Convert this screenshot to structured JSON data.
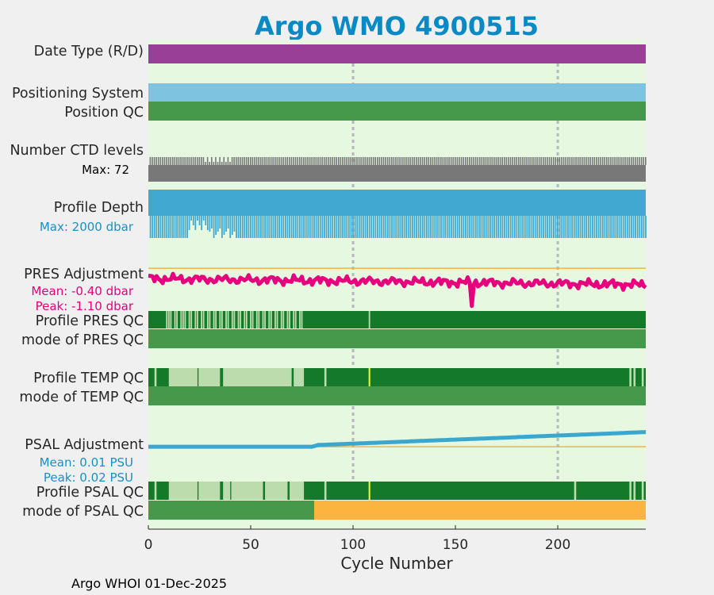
{
  "title": "Argo WMO 4900515",
  "footer": "Argo WHOI 01-Dec-2025",
  "colors": {
    "title": "#0a8ac4",
    "background": "#e6f8e0",
    "figure_bg": "#f0f0f0",
    "data_type": "#993f98",
    "positioning": "#7ec4e0",
    "qc_mode_good": "#46994a",
    "qc_good_profile": "#147a2a",
    "qc_light": "#bddcae",
    "qc_marker": "#ffff33",
    "qc_bad_mode": "#fbb440",
    "ctd": "#787878",
    "depth": "#41a9d1",
    "pres_adj": "#e6007e",
    "psal_adj": "#3ba7cf",
    "ref_line": "#f5b342",
    "grid": "#b8b8b8",
    "pres_text": "#e6007e",
    "psal_text": "#1a8fc4",
    "depth_text": "#1a8fc4"
  },
  "chart_data": {
    "type": "table",
    "xlabel": "Cycle Number",
    "xlim": [
      0,
      243
    ],
    "xticks": [
      0,
      50,
      100,
      150,
      200
    ],
    "grid_x": [
      100,
      200
    ],
    "rows": {
      "data_type": {
        "label": "Date Type (R/D)"
      },
      "positioning": {
        "label": "Positioning System"
      },
      "position_qc": {
        "label": "Position QC"
      },
      "ctd_levels": {
        "label": "Number CTD levels",
        "max_label": "Max: 72",
        "max": 72
      },
      "profile_depth": {
        "label": "Profile Depth",
        "max_label": "Max: 2000 dbar",
        "max": 2000
      },
      "pres_adjustment": {
        "label": "PRES Adjustment",
        "mean_label": "Mean: -0.40 dbar",
        "peak_label": "Peak: -1.10 dbar",
        "mean": -0.4,
        "peak": -1.1,
        "ylim": [
          -1.2,
          0.05
        ]
      },
      "profile_pres_qc": {
        "label": "Profile PRES QC",
        "light_stripes": [
          9,
          10,
          11,
          13,
          14,
          16,
          17,
          18,
          20,
          21,
          23,
          24,
          26,
          27,
          29,
          30,
          32,
          33,
          35,
          36,
          38,
          39,
          41,
          42,
          44,
          45,
          47,
          48,
          50,
          51,
          53,
          54,
          56,
          57,
          59,
          60,
          62,
          63,
          65,
          66,
          68,
          69,
          71,
          72,
          74,
          75,
          108
        ]
      },
      "mode_pres_qc": {
        "label": "mode of PRES QC"
      },
      "profile_temp_qc": {
        "label": "Profile TEMP QC",
        "light_ranges": [
          [
            3,
            4
          ],
          [
            10,
            24
          ],
          [
            24.5,
            35
          ],
          [
            36.5,
            70
          ],
          [
            71,
            76
          ],
          [
            86,
            87
          ],
          [
            235,
            236
          ],
          [
            237,
            238
          ],
          [
            241,
            242
          ]
        ],
        "marker": 108
      },
      "mode_temp_qc": {
        "label": "mode of TEMP QC"
      },
      "psal_adjustment": {
        "label": "PSAL Adjustment",
        "mean_label": "Mean: 0.01 PSU",
        "peak_label": "Peak: 0.02 PSU",
        "mean": 0.01,
        "peak": 0.02,
        "ylim": [
          -0.002,
          0.025
        ]
      },
      "profile_psal_qc": {
        "label": "Profile PSAL QC",
        "light_ranges": [
          [
            3,
            4
          ],
          [
            10,
            24
          ],
          [
            24.5,
            35
          ],
          [
            36.5,
            40
          ],
          [
            40.5,
            56
          ],
          [
            57,
            68
          ],
          [
            69,
            76
          ],
          [
            86,
            87
          ],
          [
            208,
            209
          ],
          [
            235,
            236
          ],
          [
            237,
            238
          ],
          [
            241,
            242
          ]
        ],
        "marker": 108
      },
      "mode_psal_qc": {
        "label": "mode of PSAL QC",
        "good_until": 81,
        "bad_from": 81
      }
    }
  }
}
